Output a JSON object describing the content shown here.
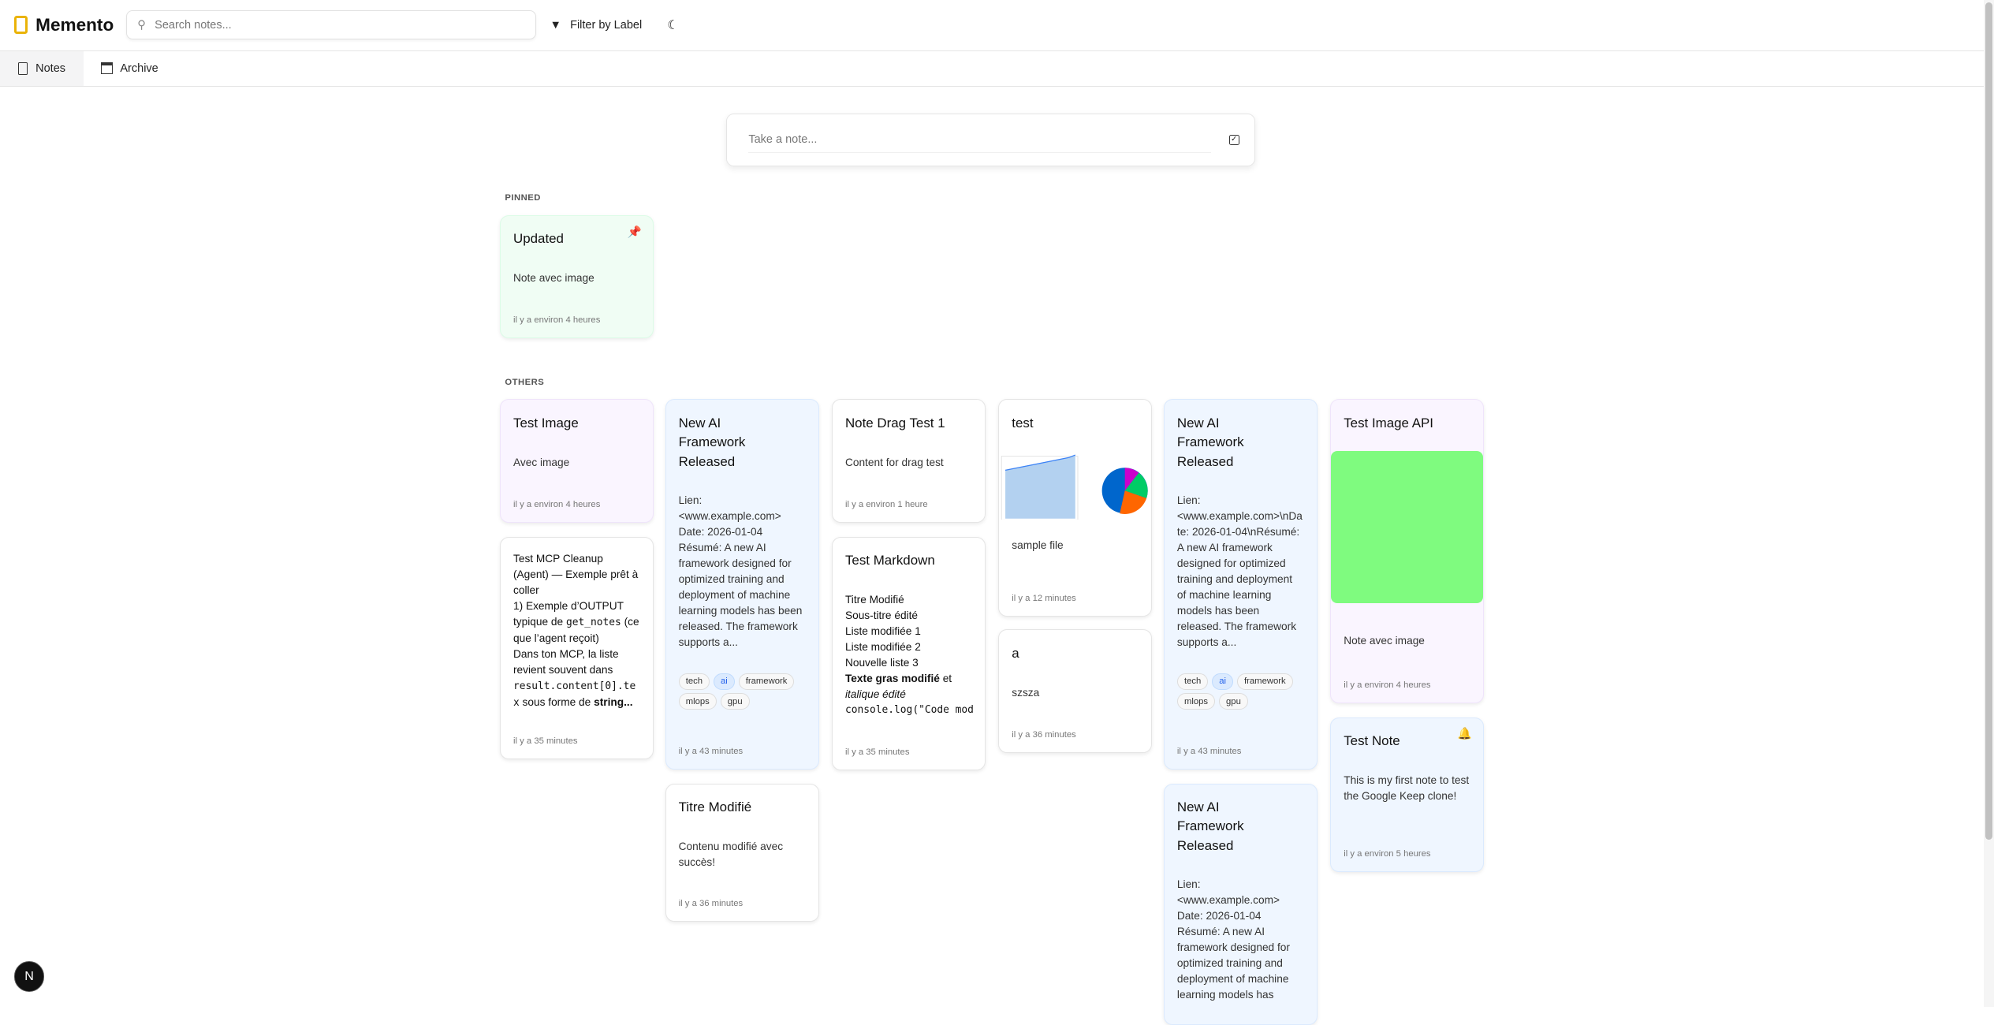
{
  "app": {
    "title": "Memento",
    "search_placeholder": "Search notes...",
    "filter_label": "Filter by Label"
  },
  "tabs": [
    {
      "label": "Notes",
      "active": true
    },
    {
      "label": "Archive",
      "active": false
    }
  ],
  "composer": {
    "placeholder": "Take a note..."
  },
  "sections": {
    "pinned": "PINNED",
    "others": "OTHERS"
  },
  "colors": {
    "accent": "#eab308",
    "blue_card": "#eff6ff",
    "purple_card": "#faf5ff",
    "green_card": "#f0fdf4",
    "image_green": "#7ffb7f",
    "tag_active": "#2563eb"
  },
  "pinned": [
    {
      "title": "Updated",
      "body": "Note avec image",
      "time": "il y a environ 4 heures",
      "icon": "pin-icon"
    }
  ],
  "others": {
    "test_image": {
      "title": "Test Image",
      "body": "Avec image",
      "time": "il y a environ 4 heures"
    },
    "mcp": {
      "body_1": "Test MCP Cleanup (Agent) — Exemple prêt à coller\n1) Exemple d’OUTPUT typique de ",
      "code_1": "get_notes",
      "body_2": " (ce que l’agent reçoit)\nDans ton MCP, la liste revient souvent dans ",
      "code_2": "result.content[0].tex",
      "body_3": " sous forme de ",
      "bold": "string...",
      "time": "il y a 35 minutes"
    },
    "ai1": {
      "title": "New AI Framework Released",
      "body": "Lien: <www.example.com>\nDate: 2026-01-04\nRésumé: A new AI framework designed for optimized training and deployment of machine learning models has been released. The framework supports a...",
      "tags": [
        "tech",
        "ai",
        "framework",
        "mlops",
        "gpu"
      ],
      "time": "il y a 43 minutes"
    },
    "titre": {
      "title": "Titre Modifié",
      "body": "Contenu modifié avec succès!",
      "time": "il y a 36 minutes"
    },
    "drag": {
      "title": "Note Drag Test 1",
      "body": "Content for drag test",
      "time": "il y a environ 1 heure"
    },
    "markdown": {
      "title": "Test Markdown",
      "lines": [
        "Titre Modifié",
        "Sous-titre édité",
        "Liste modifiée 1",
        "Liste modifiée 2",
        "Nouvelle liste 3"
      ],
      "bold": "Texte gras modifié",
      "after_bold": " et",
      "italic": "italique édité",
      "code": "console.log(\"Code mod",
      "time": "il y a 35 minutes"
    },
    "test": {
      "title": "test",
      "body": "sample file",
      "time": "il y a 12 minutes"
    },
    "a": {
      "title": "a",
      "body": "szsza",
      "time": "il y a 36 minutes"
    },
    "ai2": {
      "title": "New AI Framework Released",
      "body": "Lien: <www.example.com>\\nDate: 2026-01-04\\nRésumé: A new AI framework designed for optimized training and deployment of machine learning models has been released. The framework supports a...",
      "tags": [
        "tech",
        "ai",
        "framework",
        "mlops",
        "gpu"
      ],
      "time": "il y a 43 minutes"
    },
    "ai3": {
      "title": "New AI Framework Released",
      "body": "Lien: <www.example.com>\nDate: 2026-01-04\nRésumé: A new AI framework designed for optimized training and deployment of machine learning models has"
    },
    "image_api": {
      "title": "Test Image API",
      "body": "Note avec image",
      "time": "il y a environ 4 heures"
    },
    "test_note": {
      "title": "Test Note",
      "body": "This is my first note to test the Google Keep clone!",
      "time": "il y a environ 5 heures",
      "icon": "bell-icon"
    }
  },
  "dev_badge": "N"
}
